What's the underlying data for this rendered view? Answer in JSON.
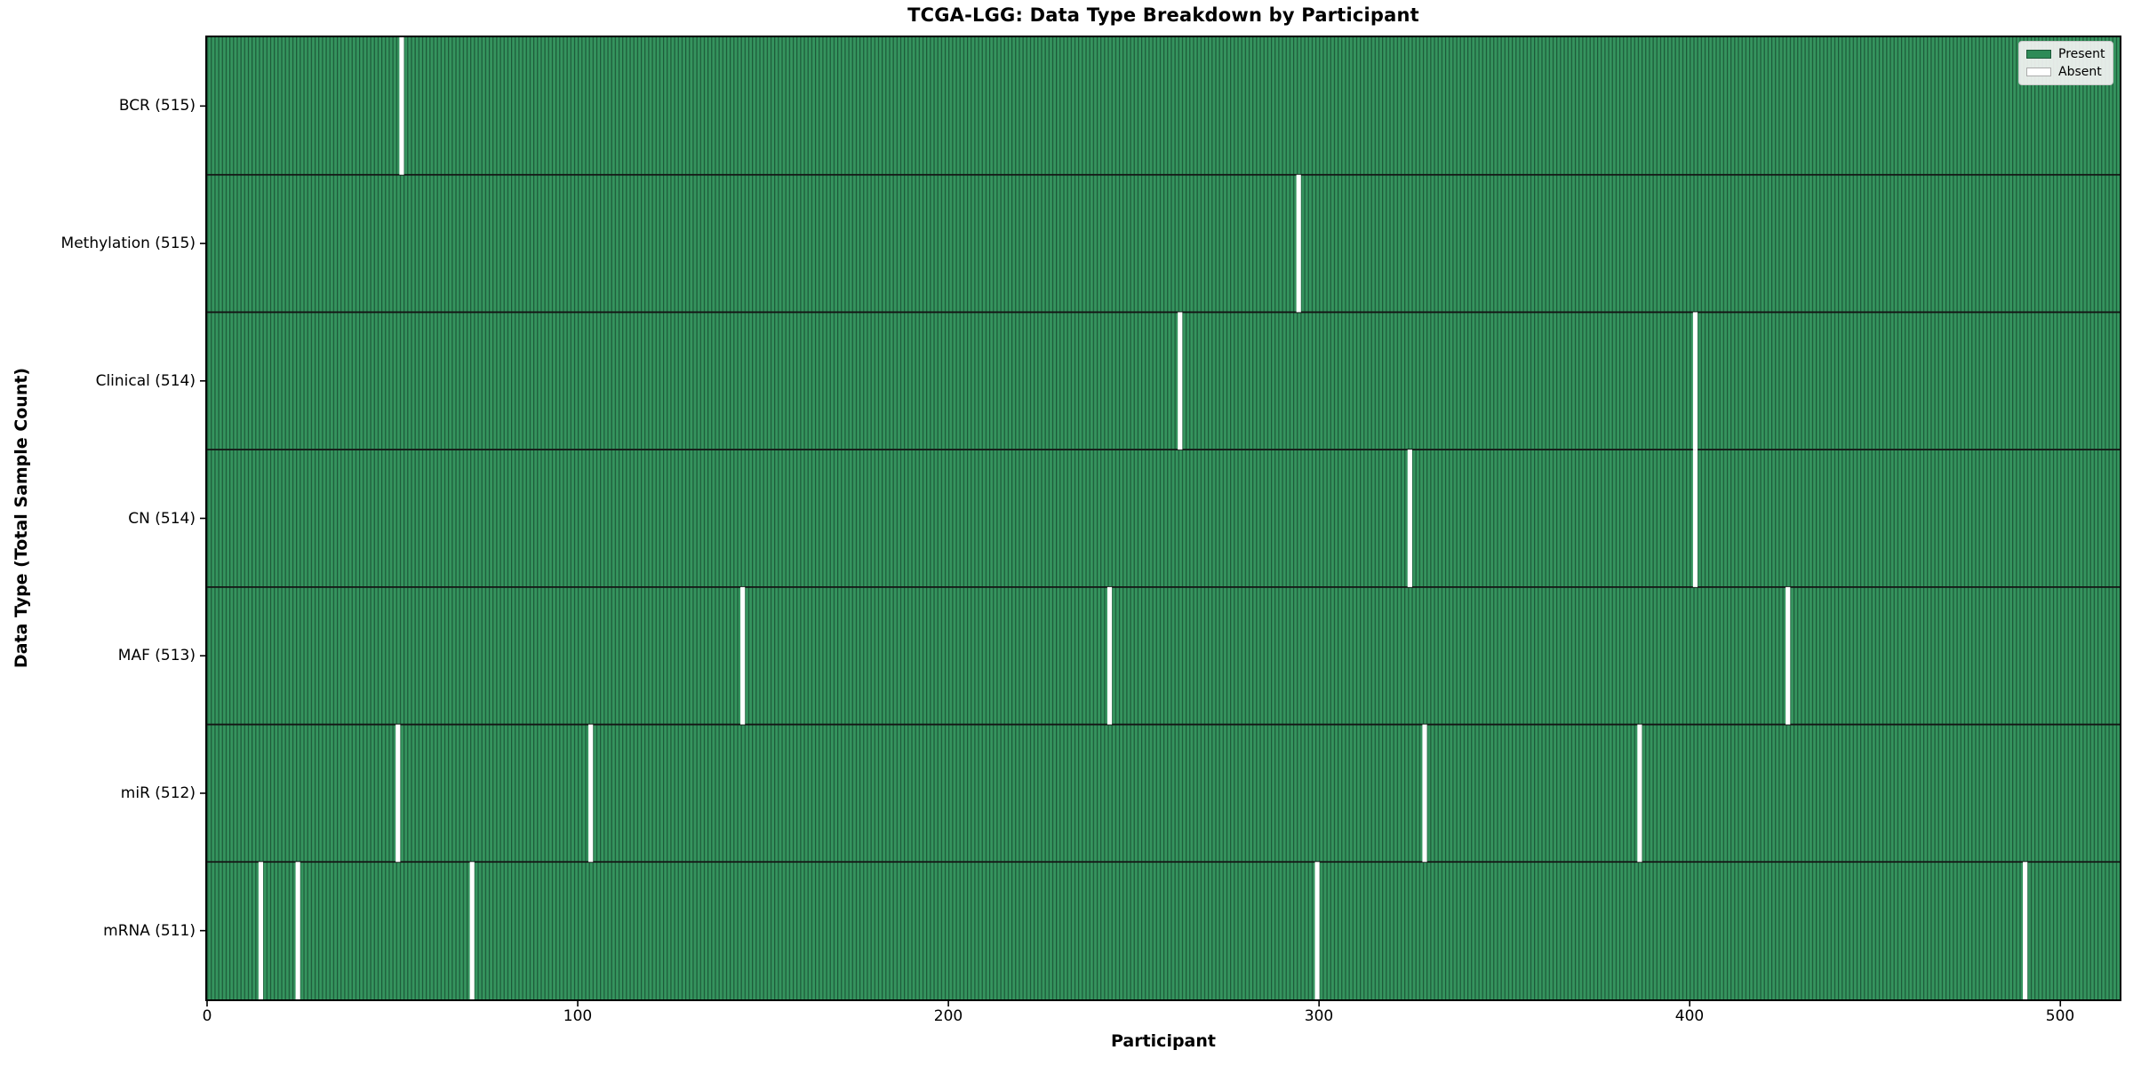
{
  "chart_data": {
    "type": "heatmap",
    "title": "TCGA-LGG: Data Type Breakdown by Participant",
    "xlabel": "Participant",
    "ylabel": "Data Type (Total Sample Count)",
    "total_participants": 516,
    "xlim": [
      0,
      516
    ],
    "x_ticks": [
      "0",
      "100",
      "200",
      "300",
      "400",
      "500"
    ],
    "x_tick_values": [
      0,
      100,
      200,
      300,
      400,
      500
    ],
    "grid": false,
    "rows": [
      {
        "name": "BCR",
        "present_count": 515,
        "label": "BCR (515)",
        "absent_participants": [
          52
        ]
      },
      {
        "name": "Methylation",
        "present_count": 515,
        "label": "Methylation (515)",
        "absent_participants": [
          294
        ]
      },
      {
        "name": "Clinical",
        "present_count": 514,
        "label": "Clinical (514)",
        "absent_participants": [
          262,
          401
        ]
      },
      {
        "name": "CN",
        "present_count": 514,
        "label": "CN (514)",
        "absent_participants": [
          324,
          401
        ]
      },
      {
        "name": "MAF",
        "present_count": 513,
        "label": "MAF (513)",
        "absent_participants": [
          144,
          243,
          426
        ]
      },
      {
        "name": "miR",
        "present_count": 512,
        "label": "miR (512)",
        "absent_participants": [
          51,
          103,
          328,
          386
        ]
      },
      {
        "name": "mRNA",
        "present_count": 511,
        "label": "mRNA (511)",
        "absent_participants": [
          14,
          24,
          71,
          299,
          490
        ]
      }
    ],
    "legend": {
      "position": "upper right",
      "entries": [
        {
          "label": "Present",
          "color": "#2E8B57"
        },
        {
          "label": "Absent",
          "color": "#FFFFFF"
        }
      ]
    },
    "colors": {
      "present_fill": "#35945E",
      "cell_edge": "#1C5838",
      "absent_fill": "#FFFFFF",
      "row_divider": "#141414",
      "axes_edge": "#000000",
      "tick_color": "#000000",
      "legend_bg": "#F3F3F3"
    }
  }
}
